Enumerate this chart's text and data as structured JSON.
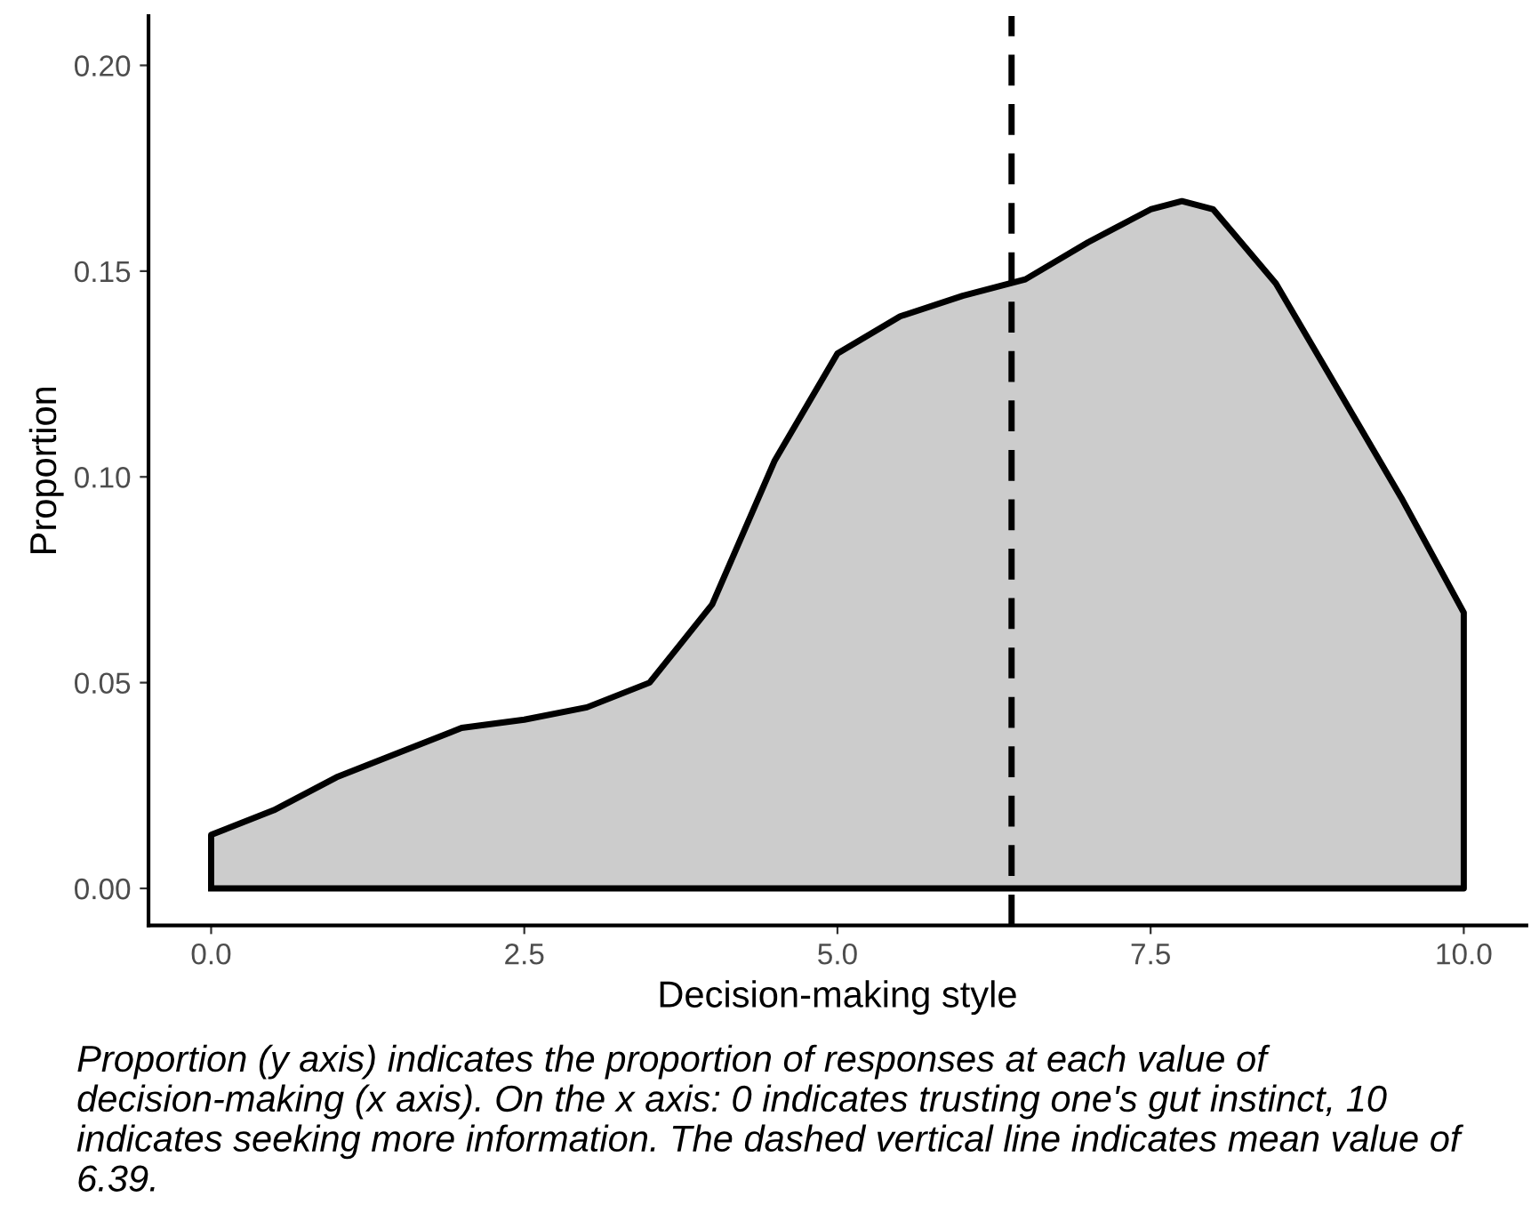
{
  "chart_data": {
    "type": "area",
    "xlabel": "Decision-making style",
    "ylabel": "Proportion",
    "x": [
      0,
      0.5,
      1,
      1.5,
      2,
      2.5,
      3,
      3.5,
      4,
      4.5,
      5,
      5.5,
      6,
      6.5,
      7,
      7.5,
      7.75,
      8,
      8.5,
      9,
      9.5,
      10
    ],
    "series": [
      {
        "color": "#cccccc",
        "values": [
          0.013,
          0.019,
          0.027,
          0.033,
          0.039,
          0.041,
          0.044,
          0.05,
          0.069,
          0.104,
          0.13,
          0.139,
          0.144,
          0.148,
          0.157,
          0.165,
          0.167,
          0.165,
          0.147,
          0.121,
          0.095,
          0.067
        ]
      }
    ],
    "xlim": [
      -0.5,
      10.5
    ],
    "ylim": [
      -0.009,
      0.212
    ],
    "xticks": [
      {
        "value": 0,
        "label": "0.0"
      },
      {
        "value": 2.5,
        "label": "2.5"
      },
      {
        "value": 5,
        "label": "5.0"
      },
      {
        "value": 7.5,
        "label": "7.5"
      },
      {
        "value": 10,
        "label": "10.0"
      }
    ],
    "yticks": [
      {
        "value": 0,
        "label": "0.00"
      },
      {
        "value": 0.05,
        "label": "0.05"
      },
      {
        "value": 0.1,
        "label": "0.10"
      },
      {
        "value": 0.15,
        "label": "0.15"
      },
      {
        "value": 0.2,
        "label": "0.20"
      }
    ],
    "ref_lines": [
      {
        "axis": "x",
        "value": 6.39,
        "color": "#000000",
        "line_style": "dashed"
      }
    ],
    "grid": false,
    "annotations": [
      "Proportion (y axis) indicates the proportion of responses at each value of decision-making (x axis). On the x axis: 0 indicates trusting one's gut instinct, 10 indicates seeking more information. The dashed vertical line indicates mean value of 6.39."
    ]
  }
}
